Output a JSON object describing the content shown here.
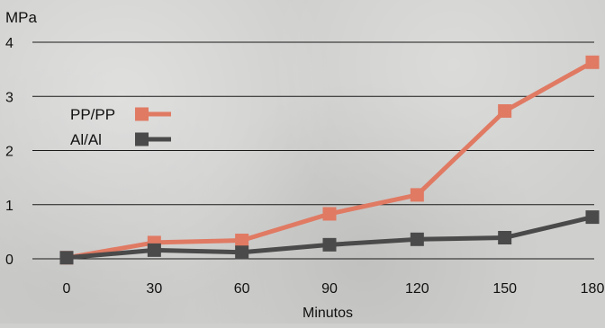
{
  "chart_data": {
    "type": "line",
    "ylabel": "MPa",
    "xlabel": "Minutos",
    "x": [
      0,
      30,
      60,
      90,
      120,
      150,
      180
    ],
    "xticks": [
      "0",
      "30",
      "60",
      "90",
      "120",
      "150",
      "180"
    ],
    "yticks": [
      "0",
      "1",
      "2",
      "3",
      "4"
    ],
    "ylim": [
      0,
      4
    ],
    "xlim": [
      0,
      180
    ],
    "grid": true,
    "legend_position": "left",
    "series": [
      {
        "name": "PP/PP",
        "color": "#e07a63",
        "values": [
          0.02,
          0.3,
          0.34,
          0.83,
          1.18,
          2.73,
          3.63
        ]
      },
      {
        "name": "Al/Al",
        "color": "#4a4a4a",
        "values": [
          0.02,
          0.16,
          0.12,
          0.26,
          0.36,
          0.39,
          0.77
        ]
      }
    ]
  }
}
